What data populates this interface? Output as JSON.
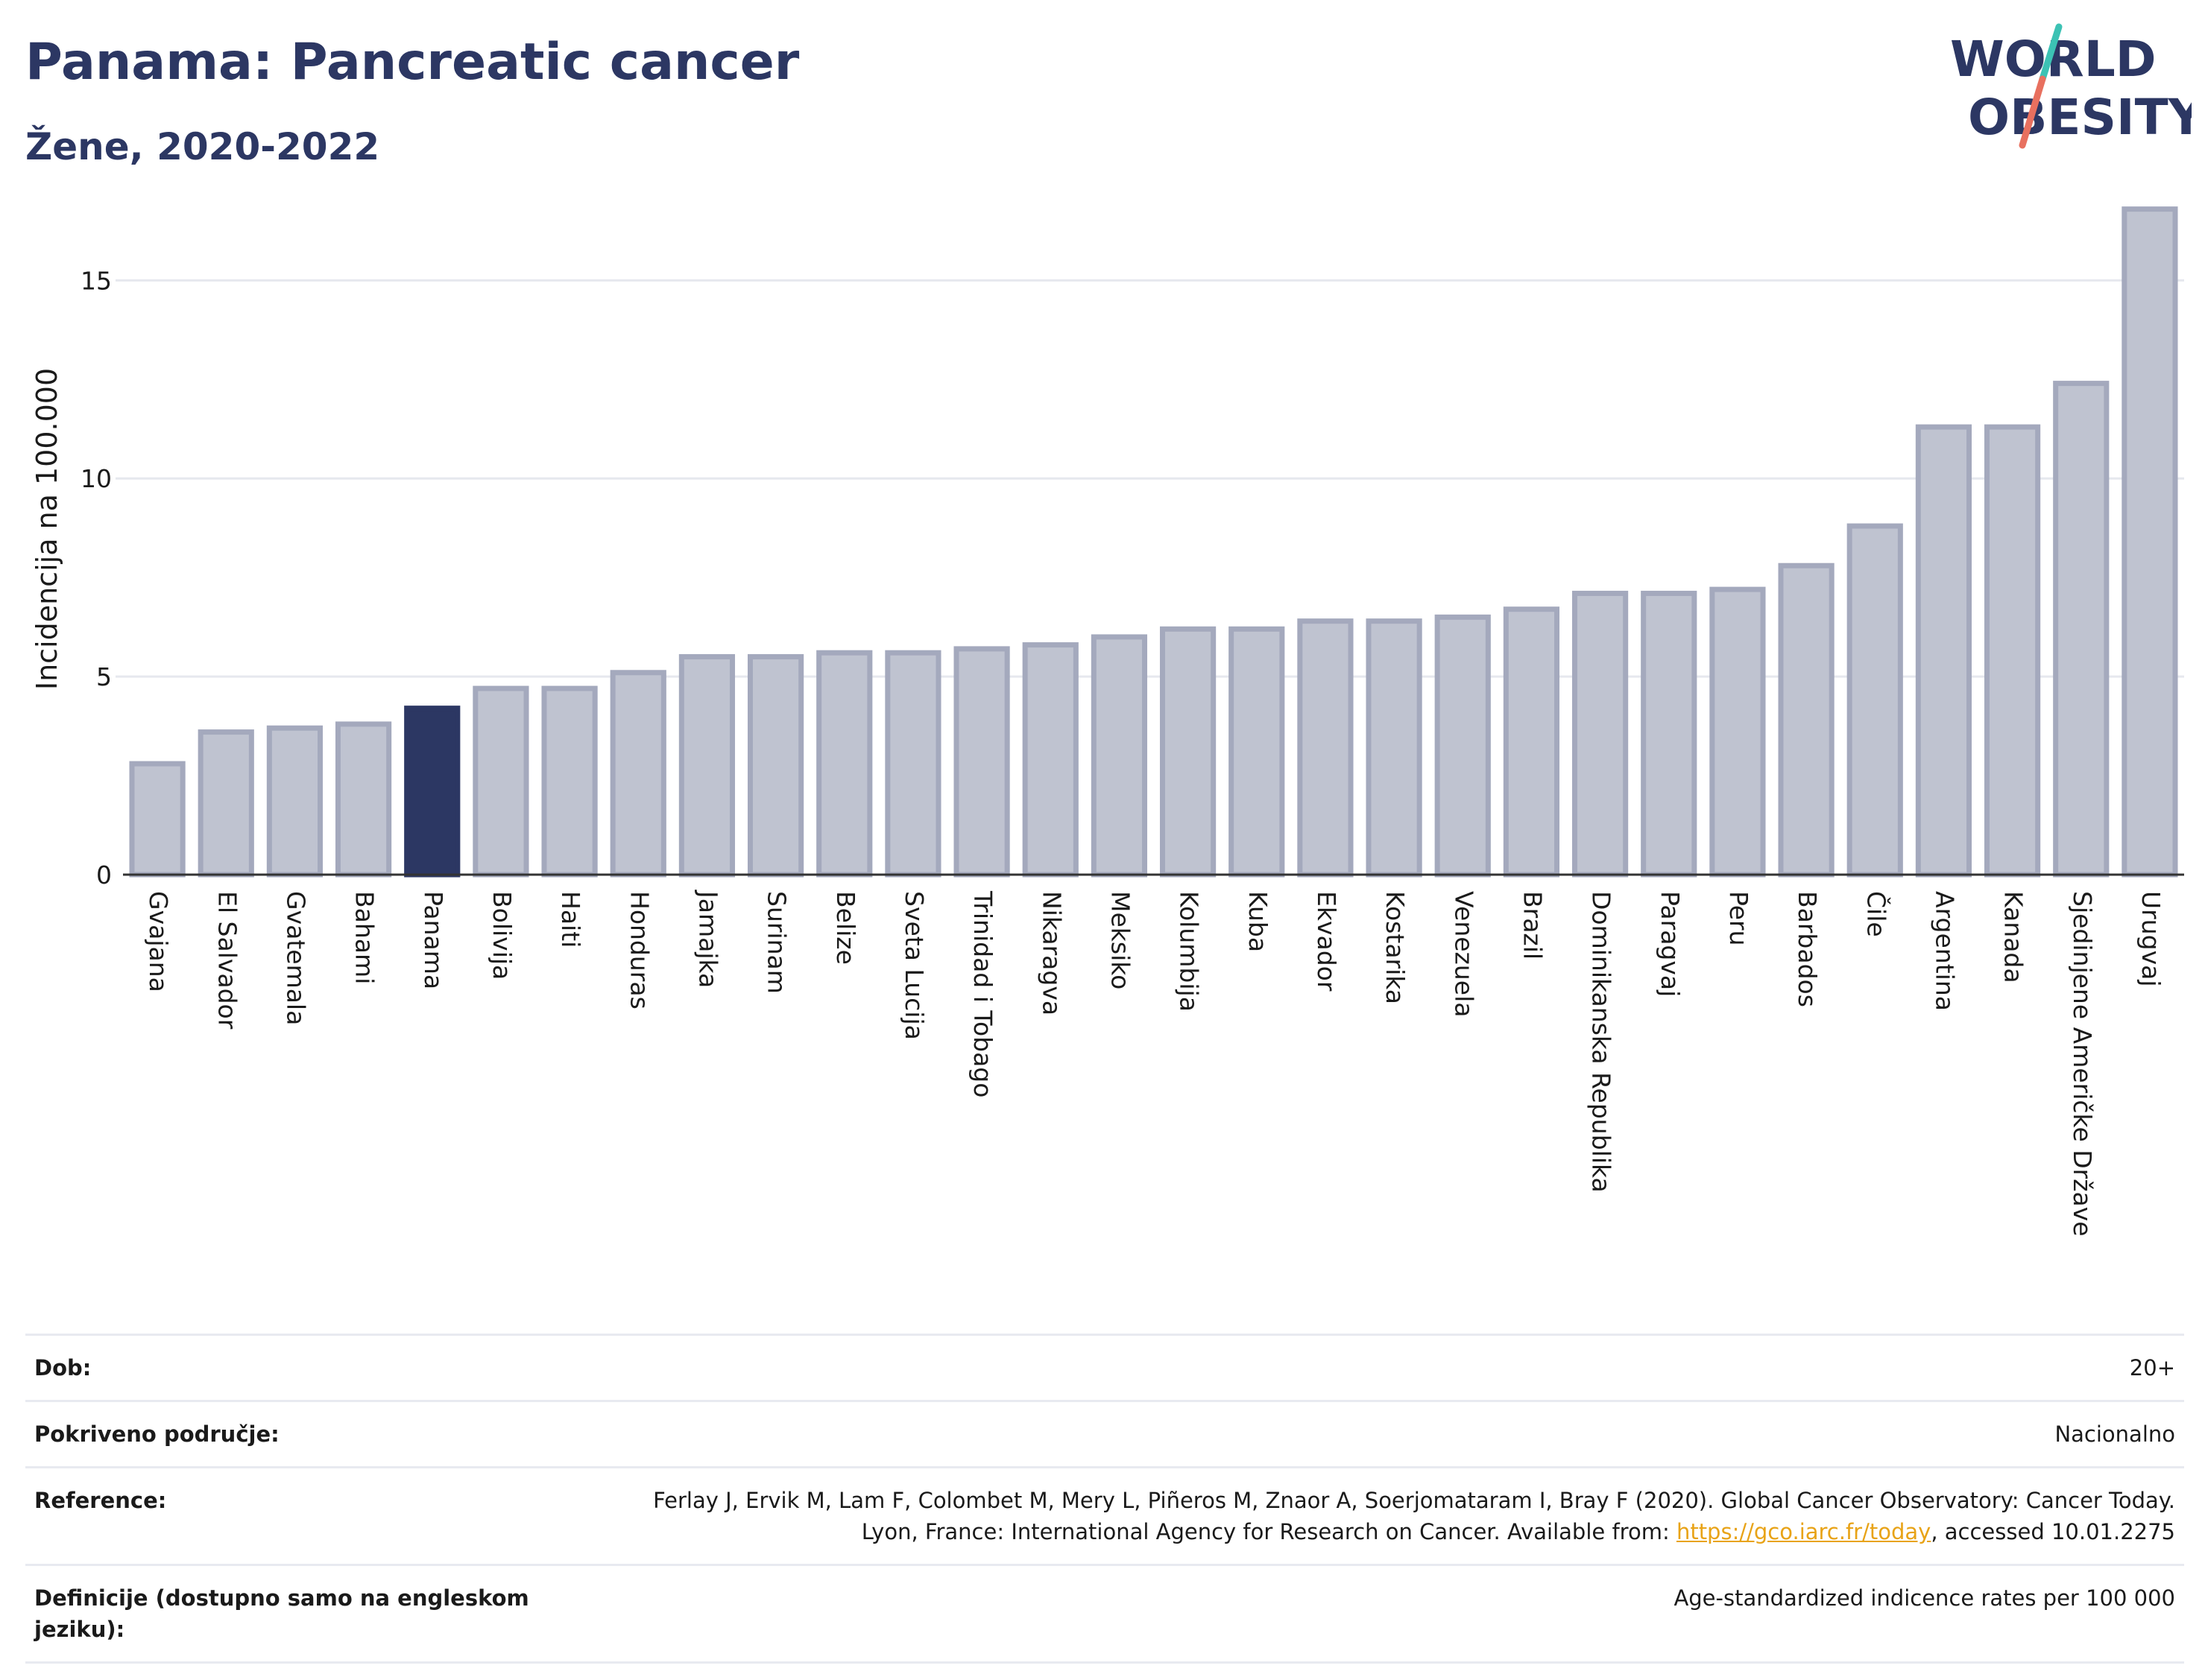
{
  "header": {
    "title": "Panama: Pancreatic cancer",
    "subtitle": "Žene, 2020-2022"
  },
  "logo": {
    "line1": "WORLD",
    "line2": "OBESITY",
    "colors": {
      "text": "#2c3763",
      "slash_top": "#3cc2b4",
      "slash_bottom": "#e8705f"
    }
  },
  "colors": {
    "bar_fill": "#bfc3d0",
    "bar_stroke": "#a4a9bd",
    "highlight": "#2c3763",
    "grid": "#e6e8ee",
    "axis": "#333333"
  },
  "chart_data": {
    "type": "bar",
    "title": "",
    "xlabel": "",
    "ylabel": "Incidencija na 100.000",
    "ylim": [
      0,
      17
    ],
    "yticks": [
      0,
      5,
      10,
      15
    ],
    "grid": true,
    "highlight": "Panama",
    "categories": [
      "Gvajana",
      "El Salvador",
      "Gvatemala",
      "Bahami",
      "Panama",
      "Bolivija",
      "Haiti",
      "Honduras",
      "Jamajka",
      "Surinam",
      "Belize",
      "Sveta Lucija",
      "Trinidad i Tobago",
      "Nikaragva",
      "Meksiko",
      "Kolumbija",
      "Kuba",
      "Ekvador",
      "Kostarika",
      "Venezuela",
      "Brazil",
      "Dominikanska Republika",
      "Paragvaj",
      "Peru",
      "Barbados",
      "Čile",
      "Argentina",
      "Kanada",
      "Sjedinjene Američke Države",
      "Urugvaj"
    ],
    "values": [
      2.8,
      3.6,
      3.7,
      3.8,
      4.2,
      4.7,
      4.7,
      5.1,
      5.5,
      5.5,
      5.6,
      5.6,
      5.7,
      5.8,
      6.0,
      6.2,
      6.2,
      6.4,
      6.4,
      6.5,
      6.7,
      7.1,
      7.1,
      7.2,
      7.8,
      8.8,
      11.3,
      11.3,
      12.4,
      16.8
    ]
  },
  "info": {
    "rows": [
      {
        "key": "Dob:",
        "value": "20+"
      },
      {
        "key": "Pokriveno područje:",
        "value": "Nacionalno"
      },
      {
        "key": "Reference:",
        "value_before": "Ferlay J, Ervik M, Lam F, Colombet M, Mery L, Piñeros M, Znaor A, Soerjomataram I, Bray F (2020). Global Cancer Observatory: Cancer Today. Lyon, France: International Agency for Research on Cancer. Available from: ",
        "link": "https://gco.iarc.fr/today",
        "value_after": ", accessed 10.01.2275"
      },
      {
        "key": "Definicije (dostupno samo na engleskom jeziku):",
        "value": "Age-standardized indicence rates per 100 000"
      }
    ]
  }
}
